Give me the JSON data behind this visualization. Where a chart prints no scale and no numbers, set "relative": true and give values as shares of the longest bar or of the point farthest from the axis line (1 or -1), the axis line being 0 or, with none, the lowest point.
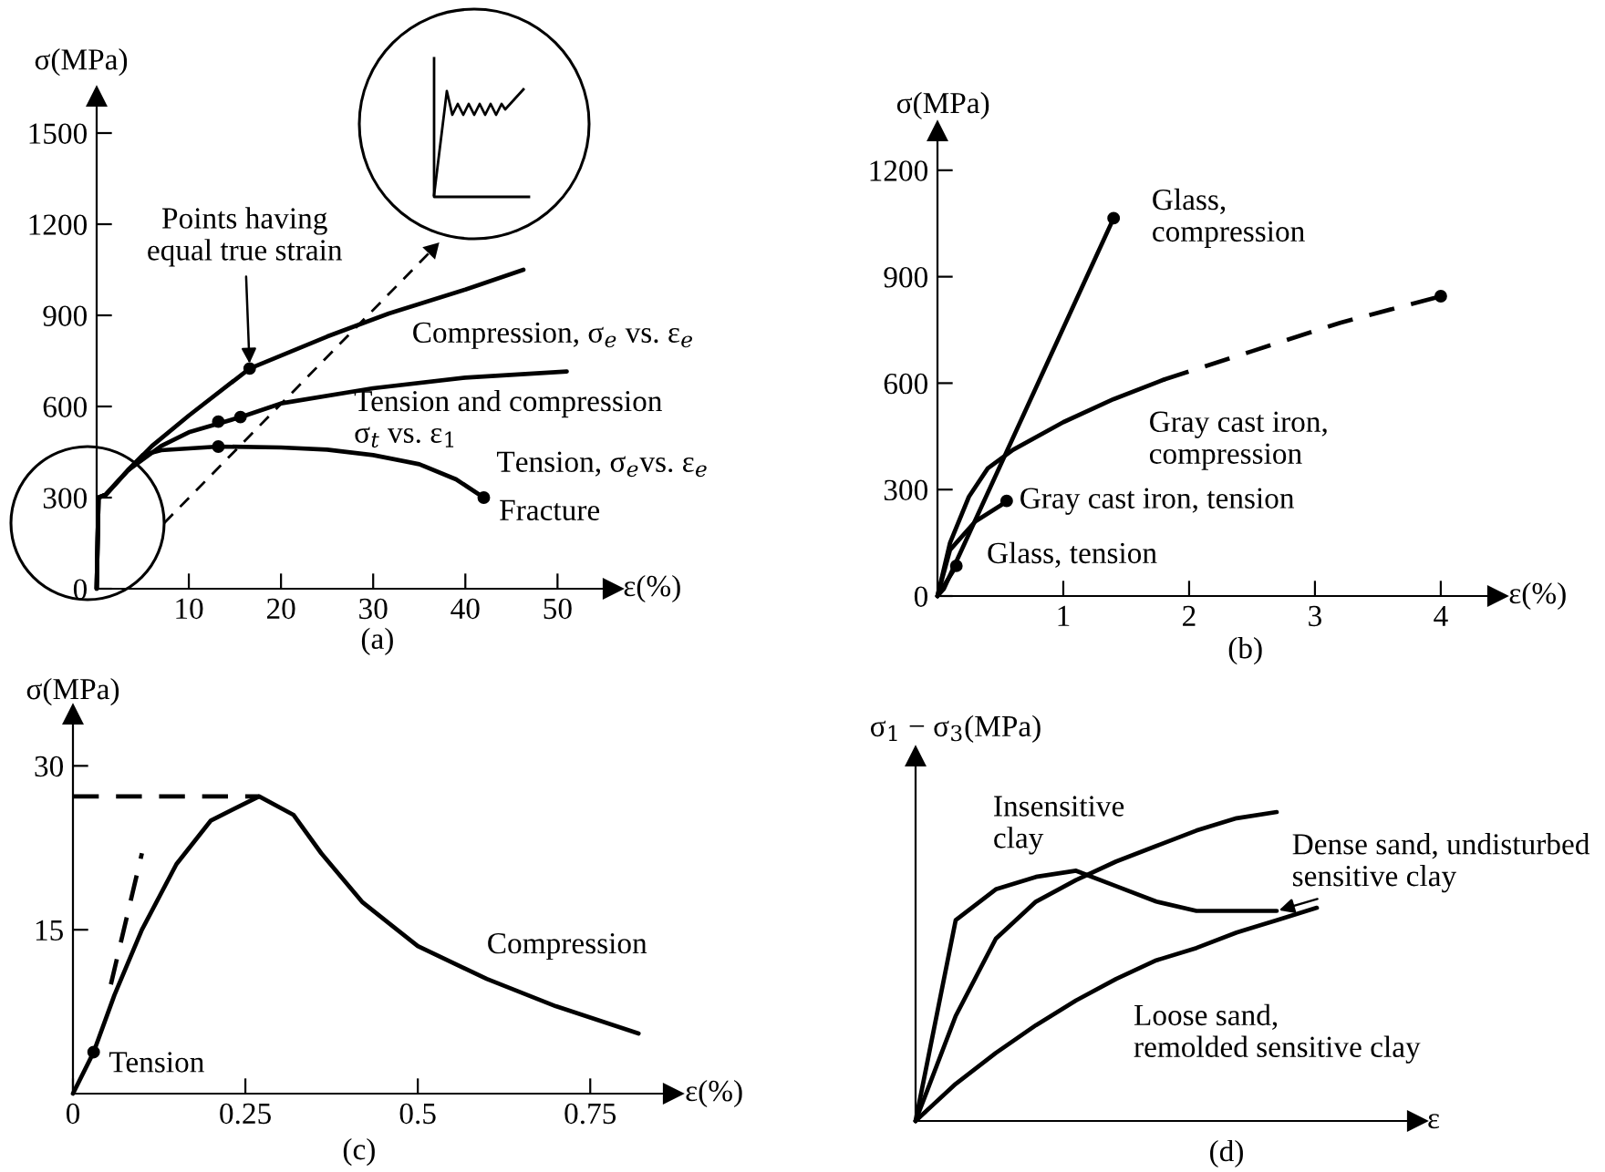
{
  "chart_data": [
    {
      "type": "line",
      "title": "(a)",
      "xlabel": "ε(%)",
      "ylabel": "σ(MPa)",
      "xlim": [
        0,
        56
      ],
      "ylim": [
        0,
        1620
      ],
      "xticks": [
        10,
        20,
        30,
        40,
        50
      ],
      "yticks": [
        0,
        300,
        600,
        900,
        1200,
        1500
      ],
      "grid": false,
      "series": [
        {
          "name": "Compression, σ$_{e}$ vs. ε$_{e}$",
          "color": "#000000",
          "x": [
            0,
            0.2,
            1,
            3.4,
            6,
            10,
            16.6,
            25,
            31.7,
            40,
            46.3
          ],
          "values": [
            0,
            300,
            310,
            390,
            470,
            570,
            725,
            830,
            906,
            985,
            1050
          ]
        },
        {
          "name": "Tension and compression\nσ$_{t}$ vs. ε$_{1}$",
          "color": "#000000",
          "x": [
            0,
            0.2,
            1,
            3.4,
            7,
            10,
            15.6,
            20,
            30,
            40,
            51
          ],
          "values": [
            0,
            300,
            310,
            390,
            470,
            515,
            565,
            610,
            660,
            695,
            715
          ]
        },
        {
          "name": "Tension, σ$_{e}$vs. ε$_{e}$",
          "color": "#000000",
          "x": [
            0,
            0.2,
            1,
            3.4,
            5,
            7,
            13.2,
            20,
            25,
            30,
            35,
            39,
            42
          ],
          "values": [
            0,
            300,
            310,
            390,
            440,
            456,
            468,
            465,
            458,
            440,
            410,
            360,
            300
          ]
        },
        {
          "type": "scatter",
          "color": "#000000",
          "x": [
            16.6,
            15.6,
            13.2,
            13.2,
            42
          ],
          "values": [
            725,
            565,
            550,
            468,
            300
          ]
        }
      ],
      "annotations": [
        {
          "text": "Points having\nequal true strain",
          "x": 16.6,
          "y": 725
        },
        {
          "text": "Fracture",
          "x": 42,
          "y": 300
        }
      ]
    },
    {
      "type": "line",
      "title": "(b)",
      "xlabel": "ε(%)",
      "ylabel": "σ(MPa)",
      "xlim": [
        0,
        4.45
      ],
      "ylim": [
        0,
        1310
      ],
      "xticks": [
        1,
        2,
        3,
        4
      ],
      "yticks": [
        0,
        300,
        600,
        900,
        1200
      ],
      "grid": false,
      "series": [
        {
          "name": "Glass,\ncompression",
          "color": "#000000",
          "x": [
            0,
            0.05,
            1.4
          ],
          "values": [
            0,
            20,
            1065
          ]
        },
        {
          "name": "Gray cast iron,\ncompression",
          "color": "#000000",
          "x": [
            0,
            0.1,
            0.25,
            0.4,
            0.6,
            1.0,
            1.4,
            1.8
          ],
          "values": [
            0,
            150,
            280,
            360,
            412,
            490,
            555,
            610
          ]
        },
        {
          "color": "#000000",
          "line_style": "dashed",
          "x": [
            1.8,
            2.5,
            3.2,
            4
          ],
          "values": [
            610,
            690,
            770,
            845
          ]
        },
        {
          "name": "Gray cast iron, tension",
          "color": "#000000",
          "x": [
            0,
            0.1,
            0.3,
            0.5,
            0.55
          ],
          "values": [
            0,
            130,
            210,
            255,
            268
          ]
        },
        {
          "name": "Glass, tension",
          "color": "#000000",
          "x": [
            0,
            0.15
          ],
          "values": [
            0,
            85
          ]
        },
        {
          "type": "scatter",
          "color": "#000000",
          "x": [
            1.4,
            4,
            0.55,
            0.15
          ],
          "values": [
            1065,
            845,
            268,
            85
          ]
        }
      ]
    },
    {
      "type": "line",
      "title": "(c)",
      "xlabel": "ε(%)",
      "ylabel": "σ(MPa)",
      "xlim": [
        0,
        0.87
      ],
      "ylim": [
        0,
        34.7
      ],
      "xticks": [
        0,
        0.25,
        0.5,
        0.75
      ],
      "yticks": [
        15,
        30
      ],
      "grid": false,
      "series": [
        {
          "name": "Compression",
          "color": "#000000",
          "x": [
            0,
            0.03,
            0.06,
            0.1,
            0.15,
            0.2,
            0.27,
            0.32,
            0.36,
            0.42,
            0.5,
            0.6,
            0.7,
            0.82
          ],
          "values": [
            0,
            3.8,
            9,
            15,
            21,
            25,
            27.2,
            25.5,
            22,
            17.5,
            13.5,
            10.5,
            8,
            5.5
          ]
        },
        {
          "color": "#000000",
          "line_style": "dashed",
          "x": [
            0,
            0.27
          ],
          "values": [
            27.2,
            27.2
          ]
        },
        {
          "color": "#000000",
          "line_style": "dashed",
          "x": [
            0.055,
            0.1
          ],
          "values": [
            10,
            22
          ]
        },
        {
          "type": "scatter",
          "color": "#000000",
          "x": [
            0.03
          ],
          "values": [
            3.8
          ]
        }
      ],
      "annotations": [
        {
          "text": "Tension",
          "x": 0.03,
          "y": 3.8
        }
      ]
    },
    {
      "type": "line",
      "title": "(d)",
      "xlabel": "ε",
      "ylabel": "σ$_{1}$ − σ$_{3}$(MPa)",
      "relative": true,
      "grid": false,
      "categories": [
        null,
        null,
        null,
        null,
        null,
        null,
        null,
        null,
        null,
        null,
        null
      ],
      "series": [
        {
          "name": "Insensitive\nclay",
          "color": "#000000",
          "values": [
            0,
            0.34,
            0.59,
            0.71,
            0.78,
            0.84,
            0.89,
            0.94,
            0.98,
            1.0,
            null
          ]
        },
        {
          "name": "Dense sand, undisturbed\nsensitive clay",
          "color": "#000000",
          "values": [
            0,
            0.65,
            0.75,
            0.79,
            0.81,
            0.76,
            0.71,
            0.68,
            0.68,
            0.68,
            null
          ]
        },
        {
          "name": "Loose sand,\nremolded sensitive clay",
          "color": "#000000",
          "values": [
            0,
            0.12,
            0.22,
            0.31,
            0.39,
            0.46,
            0.52,
            0.56,
            0.61,
            0.65,
            0.69
          ]
        }
      ]
    }
  ]
}
